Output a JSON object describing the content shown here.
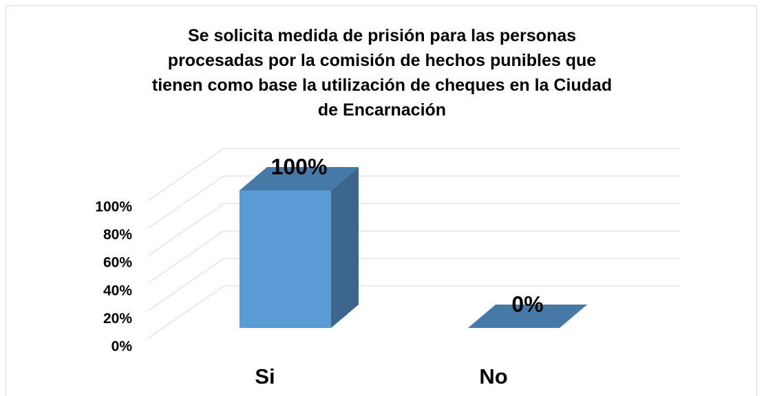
{
  "chart_data": {
    "type": "bar",
    "title": "Se solicita medida de prisión para las personas procesadas por la comisión de hechos punibles que tienen como base la utilización de cheques en la Ciudad de Encarnación",
    "categories": [
      "Si",
      "No"
    ],
    "values": [
      100,
      0
    ],
    "value_labels": [
      "100%",
      "0%"
    ],
    "color": "#5b9bd5",
    "ylim": [
      0,
      100
    ],
    "yticks": [
      {
        "value": 0,
        "label": "0%"
      },
      {
        "value": 20,
        "label": "20%"
      },
      {
        "value": 40,
        "label": "40%"
      },
      {
        "value": 60,
        "label": "60%"
      },
      {
        "value": 80,
        "label": "80%"
      },
      {
        "value": 100,
        "label": "100%"
      }
    ],
    "grid": true
  }
}
